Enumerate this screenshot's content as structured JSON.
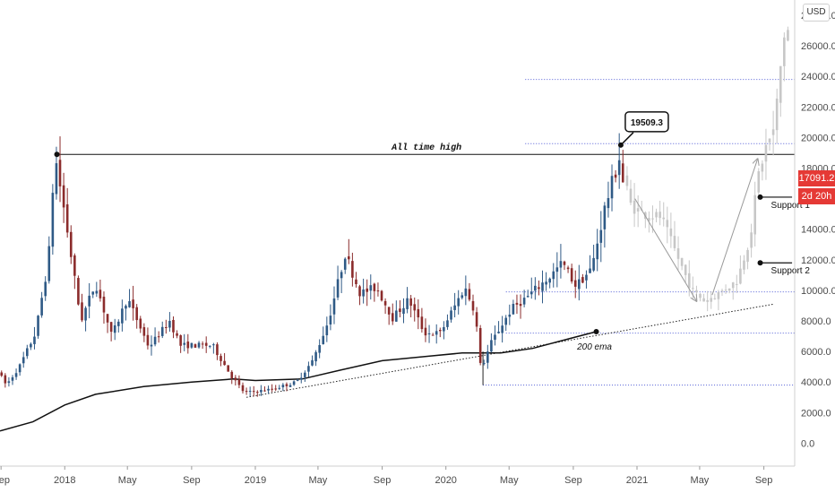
{
  "chart_data": {
    "type": "candlestick",
    "currency": "USD",
    "last_price": "17091.2",
    "countdown": "2d 20h",
    "y_ticks": [
      "0.0",
      "2000.0",
      "4000.0",
      "6000.0",
      "8000.0",
      "10000.0",
      "12000.0",
      "14000.0",
      "16000.0",
      "18000.0",
      "20000.0",
      "22000.0",
      "24000.0",
      "26000.0",
      "28000.0"
    ],
    "ylim": [
      -1500,
      29000
    ],
    "x_ticks": [
      {
        "label": "Sep",
        "date": "2017-09-01"
      },
      {
        "label": "2018",
        "date": "2018-01-01"
      },
      {
        "label": "May",
        "date": "2018-05-01"
      },
      {
        "label": "Sep",
        "date": "2018-09-01"
      },
      {
        "label": "2019",
        "date": "2019-01-01"
      },
      {
        "label": "May",
        "date": "2019-05-01"
      },
      {
        "label": "Sep",
        "date": "2019-09-01"
      },
      {
        "label": "2020",
        "date": "2020-01-01"
      },
      {
        "label": "May",
        "date": "2020-05-01"
      },
      {
        "label": "Sep",
        "date": "2020-09-01"
      },
      {
        "label": "2021",
        "date": "2021-01-01"
      },
      {
        "label": "May",
        "date": "2021-05-01"
      },
      {
        "label": "Sep",
        "date": "2021-09-01"
      }
    ],
    "x_range": [
      "2017-08-30",
      "2021-10-30"
    ],
    "price_path": [
      [
        "2017-08-30",
        4700
      ],
      [
        "2017-09-15",
        3800
      ],
      [
        "2017-10-10",
        5000
      ],
      [
        "2017-11-10",
        7200
      ],
      [
        "2017-12-05",
        12000
      ],
      [
        "2017-12-17",
        18900
      ],
      [
        "2018-01-05",
        15000
      ],
      [
        "2018-02-05",
        8000
      ],
      [
        "2018-03-05",
        10500
      ],
      [
        "2018-04-05",
        7000
      ],
      [
        "2018-05-05",
        9500
      ],
      [
        "2018-06-15",
        6300
      ],
      [
        "2018-07-25",
        8000
      ],
      [
        "2018-08-15",
        6400
      ],
      [
        "2018-10-15",
        6400
      ],
      [
        "2018-11-20",
        4400
      ],
      [
        "2018-12-15",
        3300
      ],
      [
        "2019-02-01",
        3500
      ],
      [
        "2019-03-25",
        4000
      ],
      [
        "2019-04-25",
        5400
      ],
      [
        "2019-05-25",
        8000
      ],
      [
        "2019-06-26",
        12400
      ],
      [
        "2019-07-25",
        9800
      ],
      [
        "2019-08-25",
        10200
      ],
      [
        "2019-09-25",
        8200
      ],
      [
        "2019-10-26",
        9400
      ],
      [
        "2019-11-25",
        7200
      ],
      [
        "2019-12-25",
        7200
      ],
      [
        "2020-02-10",
        10200
      ],
      [
        "2020-03-01",
        8600
      ],
      [
        "2020-03-12",
        4800
      ],
      [
        "2020-04-01",
        6600
      ],
      [
        "2020-05-10",
        8800
      ],
      [
        "2020-06-10",
        9600
      ],
      [
        "2020-07-25",
        11000
      ],
      [
        "2020-08-15",
        11800
      ],
      [
        "2020-09-10",
        10300
      ],
      [
        "2020-10-10",
        11400
      ],
      [
        "2020-11-05",
        15500
      ],
      [
        "2020-11-25",
        17800
      ],
      [
        "2020-12-01",
        19500
      ],
      [
        "2020-12-04",
        17091
      ]
    ],
    "projection_path": [
      [
        "2020-12-10",
        17500
      ],
      [
        "2020-12-25",
        15500
      ],
      [
        "2021-01-20",
        15000
      ],
      [
        "2021-02-20",
        14800
      ],
      [
        "2021-03-20",
        12500
      ],
      [
        "2021-04-20",
        10000
      ],
      [
        "2021-05-15",
        9300
      ],
      [
        "2021-06-10",
        9800
      ],
      [
        "2021-07-15",
        10600
      ],
      [
        "2021-08-10",
        13500
      ],
      [
        "2021-08-25",
        17500
      ],
      [
        "2021-09-10",
        19500
      ],
      [
        "2021-09-25",
        20500
      ],
      [
        "2021-10-05",
        24000
      ],
      [
        "2021-10-15",
        27000
      ]
    ],
    "ema_200": [
      [
        "2017-08-30",
        800
      ],
      [
        "2017-11-01",
        1400
      ],
      [
        "2018-01-01",
        2500
      ],
      [
        "2018-03-01",
        3200
      ],
      [
        "2018-06-01",
        3700
      ],
      [
        "2018-09-01",
        4000
      ],
      [
        "2018-11-20",
        4200
      ],
      [
        "2019-01-01",
        4100
      ],
      [
        "2019-04-01",
        4200
      ],
      [
        "2019-06-15",
        4800
      ],
      [
        "2019-09-01",
        5400
      ],
      [
        "2019-12-01",
        5700
      ],
      [
        "2020-02-01",
        5900
      ],
      [
        "2020-04-15",
        5900
      ],
      [
        "2020-06-15",
        6200
      ],
      [
        "2020-08-20",
        6800
      ],
      [
        "2020-10-15",
        7300
      ]
    ],
    "annotations": {
      "ath_label": "All time high",
      "ath_value": 18900,
      "ath_from": "2017-12-17",
      "ath_to": "2021-10-30",
      "peak_callout": "19509.3",
      "peak_value": 19509,
      "peak_date": "2020-12-01",
      "ema_label": "200 ema",
      "ema_marker": [
        "2020-10-15",
        7300
      ],
      "support_1_label": "Support 1",
      "support_1_value": 16100,
      "support_1_from": "2021-08-25",
      "support_2_label": "Support 2",
      "support_2_value": 11800,
      "support_2_from": "2021-08-25",
      "support_to": "2021-10-25",
      "uptrend_line": [
        [
          "2018-12-15",
          3000
        ],
        [
          "2021-09-20",
          9100
        ]
      ],
      "arrow_down": [
        [
          "2020-12-28",
          16000
        ],
        [
          "2021-04-25",
          9300
        ]
      ],
      "arrow_up": [
        [
          "2021-05-25",
          9700
        ],
        [
          "2021-08-20",
          18600
        ]
      ],
      "dotted_levels": [
        {
          "value": 23800,
          "from": "2020-06-01",
          "to": "2021-10-30"
        },
        {
          "value": 19600,
          "from": "2020-06-01",
          "to": "2021-10-30"
        },
        {
          "value": 9900,
          "from": "2020-04-25",
          "to": "2021-10-30"
        },
        {
          "value": 7200,
          "from": "2020-04-25",
          "to": "2021-10-30"
        },
        {
          "value": 3800,
          "from": "2020-03-12",
          "to": "2021-10-30"
        }
      ],
      "march_low_line": {
        "date": "2020-03-12",
        "from": 3800,
        "to": 6000
      }
    },
    "colors": {
      "up": "#2f5a86",
      "down": "#8b2c2c",
      "projection": "#c7c7c7",
      "level_dotted": "#4f5bd5",
      "badge": "#e53935",
      "ema": "#111111"
    }
  }
}
